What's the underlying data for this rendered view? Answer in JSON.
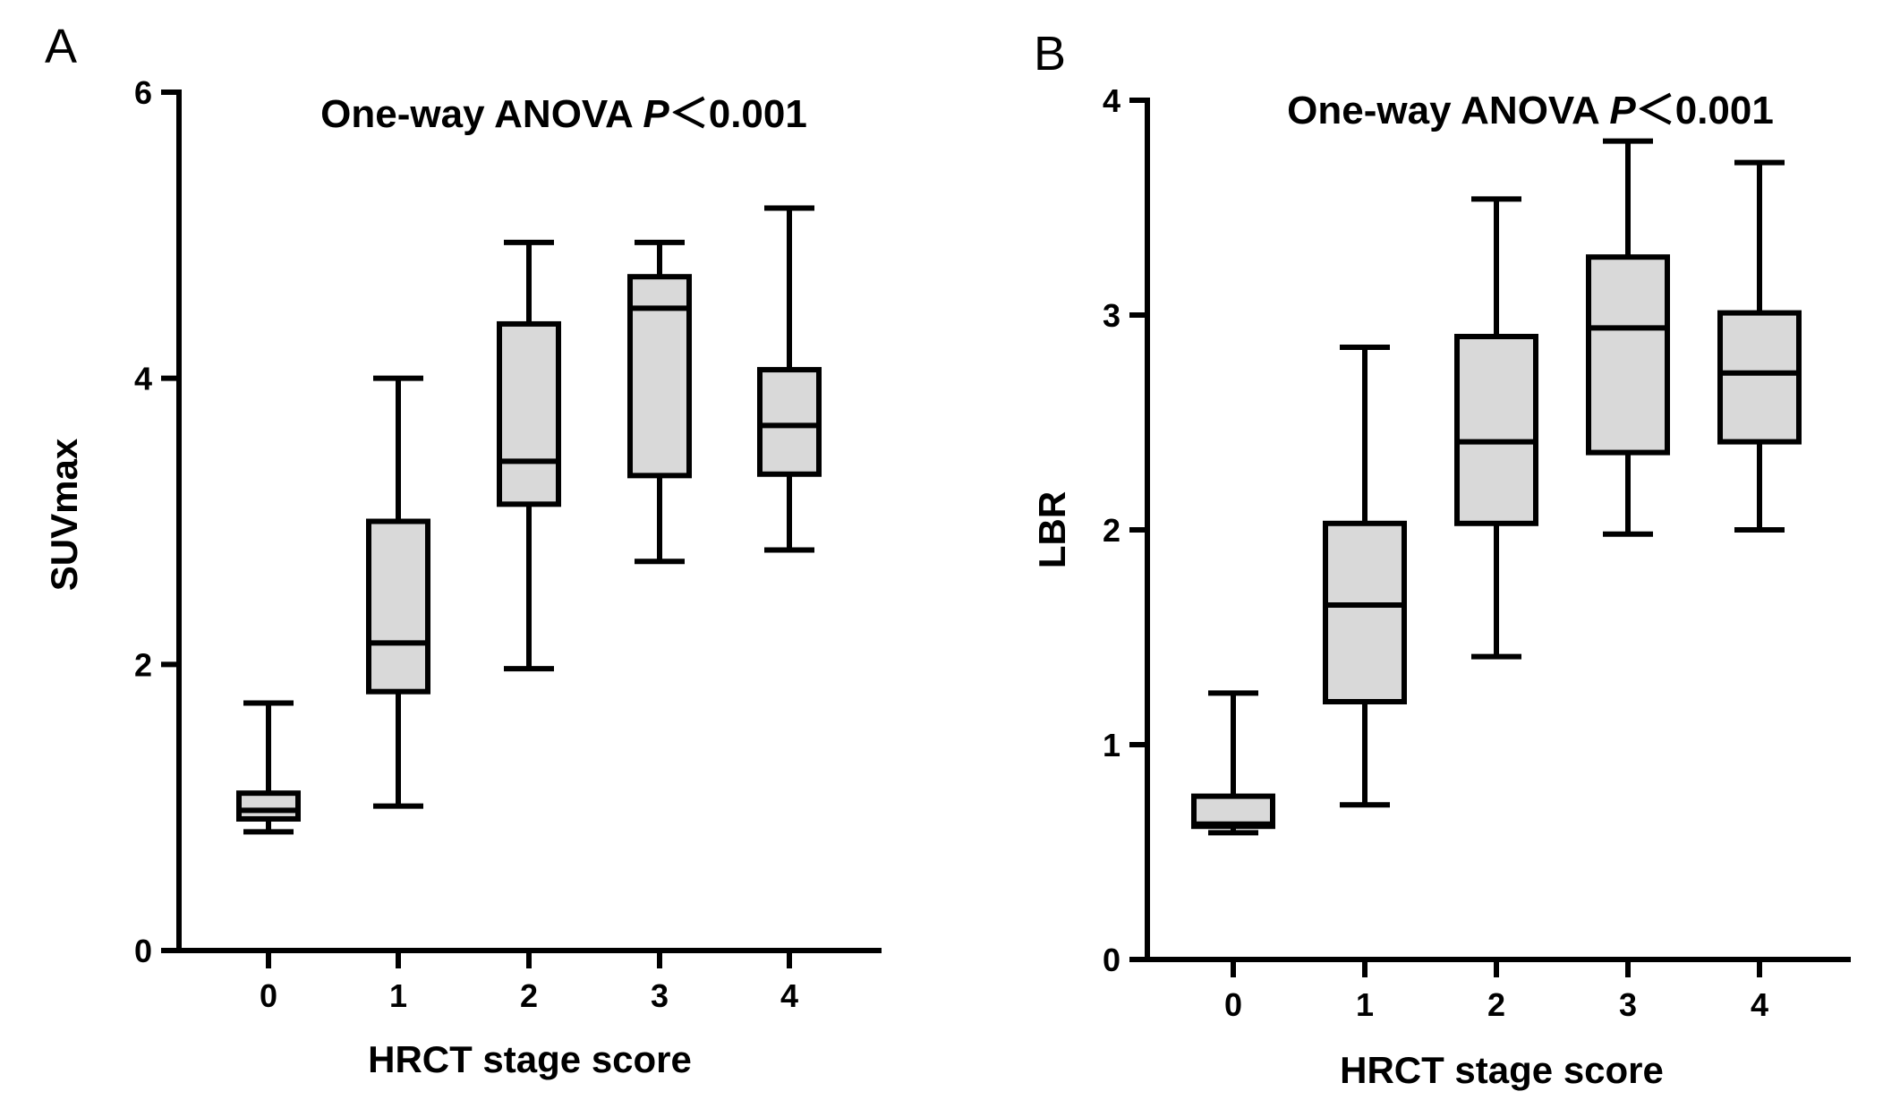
{
  "chart_data": [
    {
      "type": "boxplot",
      "panel_label": "A",
      "title": "One-way ANOVA",
      "title_p": "P",
      "title_rest": "＜0.001",
      "xlabel": "HRCT stage score",
      "ylabel": "SUVmax",
      "ylim": [
        0,
        6
      ],
      "yticks": [
        "0",
        "2",
        "4",
        "6"
      ],
      "categories": [
        "0",
        "1",
        "2",
        "3",
        "4"
      ],
      "box_fill": "#d9d9d9",
      "line_color": "#000000",
      "boxes": [
        {
          "category": "0",
          "min": 0.83,
          "q1": 0.92,
          "median": 0.98,
          "q3": 1.1,
          "max": 1.73
        },
        {
          "category": "1",
          "min": 1.01,
          "q1": 1.81,
          "median": 2.15,
          "q3": 3.0,
          "max": 4.0
        },
        {
          "category": "2",
          "min": 1.97,
          "q1": 3.12,
          "median": 3.42,
          "q3": 4.38,
          "max": 4.95
        },
        {
          "category": "3",
          "min": 2.72,
          "q1": 3.32,
          "median": 4.49,
          "q3": 4.71,
          "max": 4.95
        },
        {
          "category": "4",
          "min": 2.8,
          "q1": 3.33,
          "median": 3.67,
          "q3": 4.06,
          "max": 5.19
        }
      ]
    },
    {
      "type": "boxplot",
      "panel_label": "B",
      "title": "One-way ANOVA",
      "title_p": "P",
      "title_rest": "＜0.001",
      "xlabel": "HRCT stage score",
      "ylabel": "LBR",
      "ylim": [
        0,
        4
      ],
      "yticks": [
        "0",
        "1",
        "2",
        "3",
        "4"
      ],
      "categories": [
        "0",
        "1",
        "2",
        "3",
        "4"
      ],
      "box_fill": "#d9d9d9",
      "line_color": "#000000",
      "boxes": [
        {
          "category": "0",
          "min": 0.59,
          "q1": 0.62,
          "median": 0.63,
          "q3": 0.76,
          "max": 1.24
        },
        {
          "category": "1",
          "min": 0.72,
          "q1": 1.2,
          "median": 1.65,
          "q3": 2.03,
          "max": 2.85
        },
        {
          "category": "2",
          "min": 1.41,
          "q1": 2.03,
          "median": 2.41,
          "q3": 2.9,
          "max": 3.54
        },
        {
          "category": "3",
          "min": 1.98,
          "q1": 2.36,
          "median": 2.94,
          "q3": 3.27,
          "max": 3.81
        },
        {
          "category": "4",
          "min": 2.0,
          "q1": 2.41,
          "median": 2.73,
          "q3": 3.01,
          "max": 3.71
        }
      ]
    }
  ]
}
